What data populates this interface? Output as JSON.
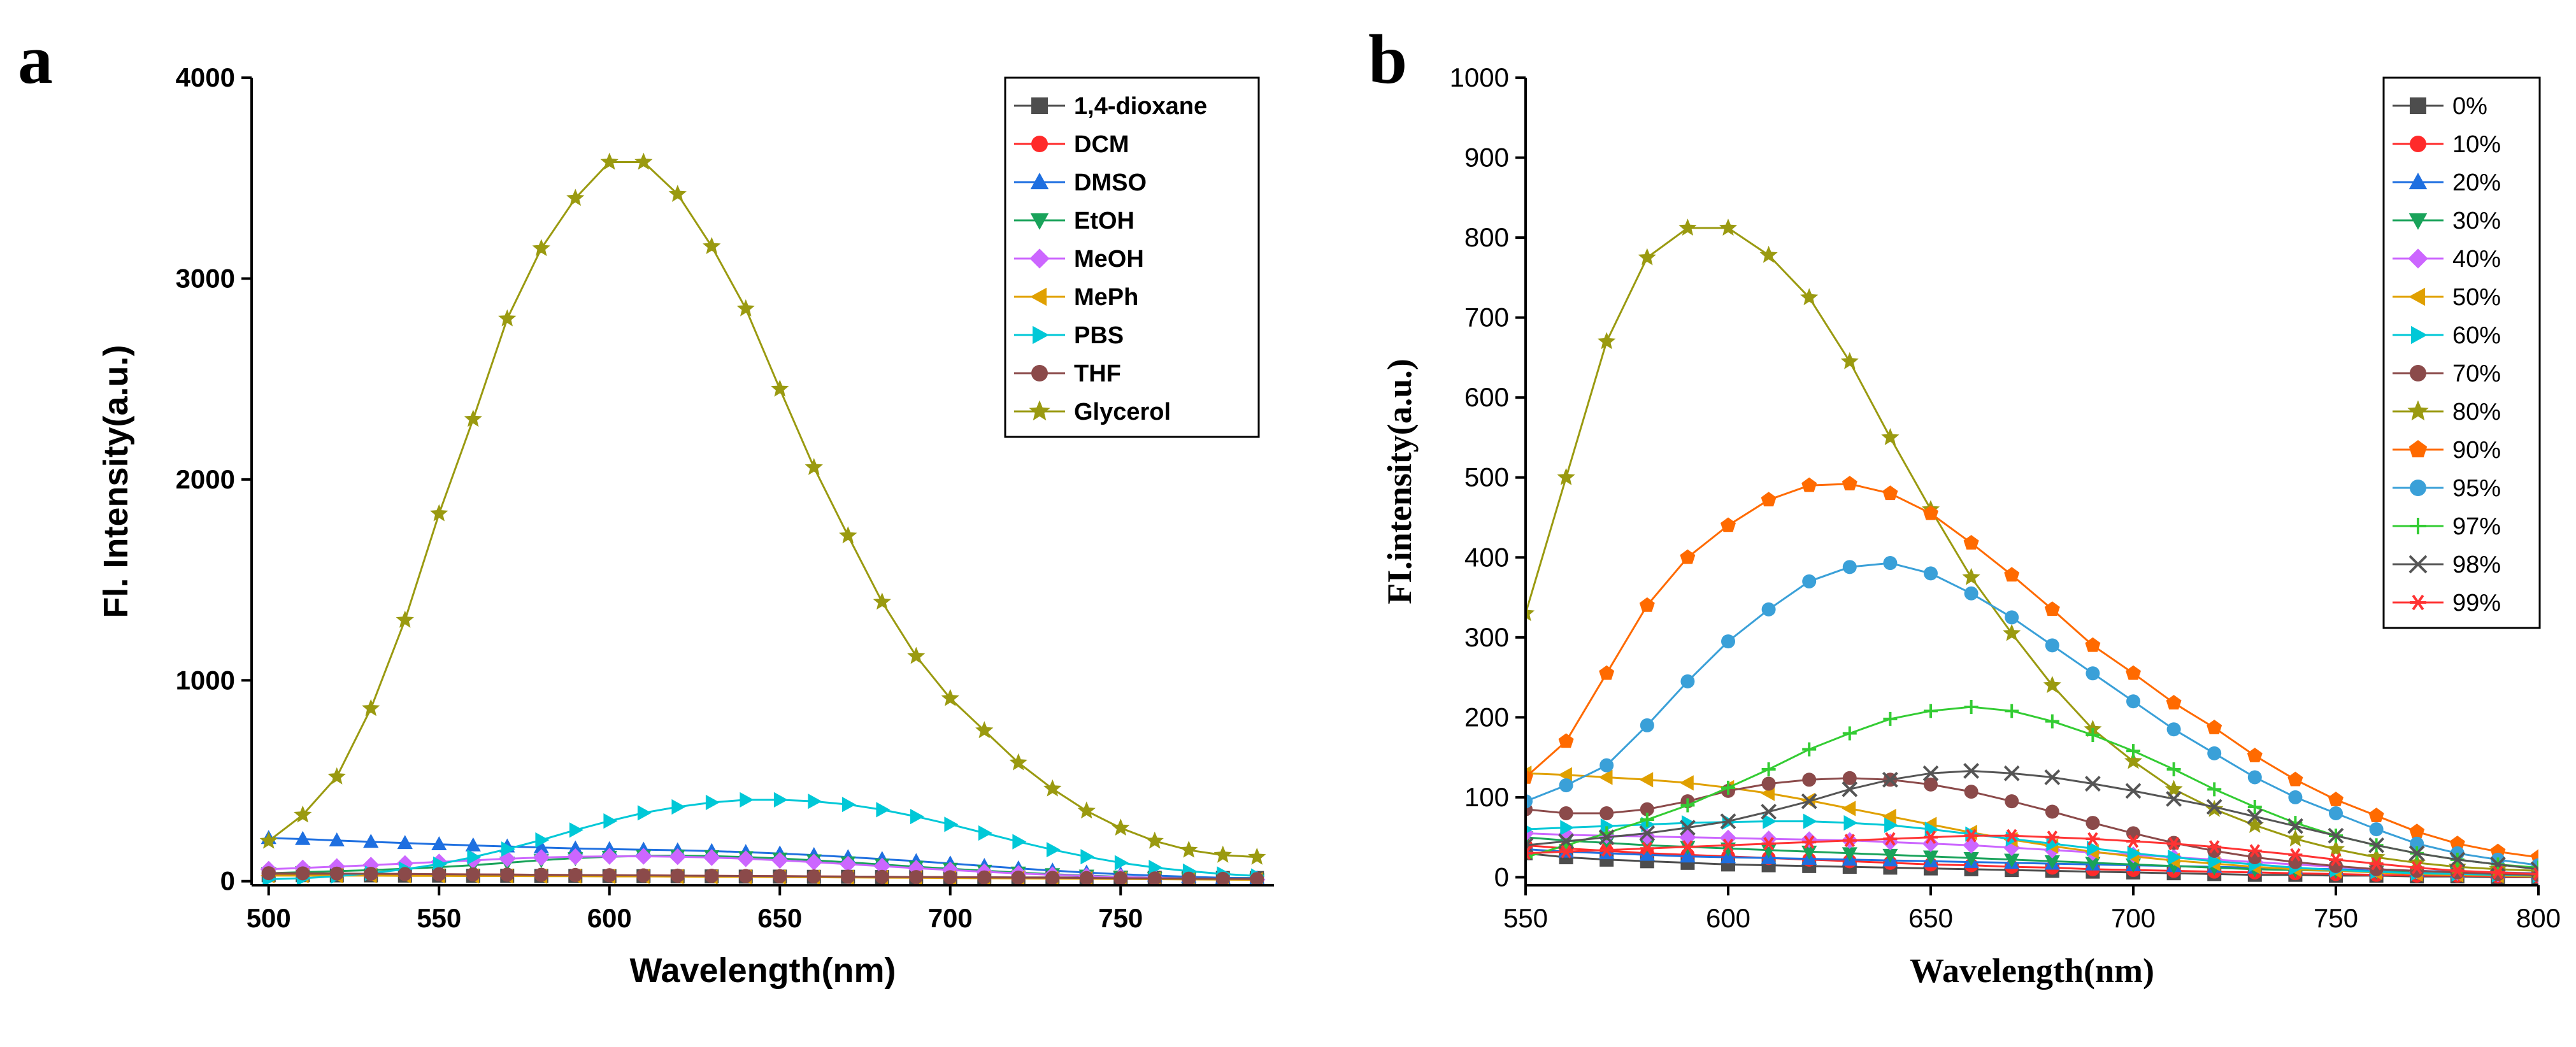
{
  "chart_data": [
    {
      "panel": "a",
      "type": "line",
      "xlabel": "Wavelength(nm)",
      "ylabel": "Fl. Intensity(a.u.)",
      "xlim": [
        495,
        795
      ],
      "ylim": [
        -20,
        4000
      ],
      "xticks": [
        500,
        550,
        600,
        650,
        700,
        750
      ],
      "yticks": [
        0,
        1000,
        2000,
        3000,
        4000
      ],
      "x": [
        500,
        510,
        520,
        530,
        540,
        550,
        560,
        570,
        580,
        590,
        600,
        610,
        620,
        630,
        640,
        650,
        660,
        670,
        680,
        690,
        700,
        710,
        720,
        730,
        740,
        750,
        760,
        770,
        780,
        790
      ],
      "series": [
        {
          "name": "1,4-dioxane",
          "color": "#4d4d4d",
          "marker": "square",
          "values": [
            30,
            30,
            29,
            29,
            28,
            28,
            27,
            27,
            26,
            26,
            25,
            25,
            24,
            24,
            23,
            23,
            22,
            22,
            21,
            21,
            20,
            20,
            19,
            19,
            18,
            18,
            17,
            17,
            16,
            16
          ]
        },
        {
          "name": "DCM",
          "color": "#ff2a2a",
          "marker": "circle",
          "values": [
            40,
            39,
            38,
            37,
            36,
            35,
            34,
            33,
            32,
            31,
            30,
            29,
            28,
            27,
            26,
            25,
            24,
            23,
            22,
            21,
            20,
            19,
            18,
            17,
            16,
            15,
            14,
            13,
            12,
            11
          ]
        },
        {
          "name": "DMSO",
          "color": "#1e6fe0",
          "marker": "triangle-up",
          "values": [
            215,
            210,
            203,
            196,
            190,
            184,
            178,
            173,
            168,
            163,
            160,
            157,
            154,
            150,
            145,
            138,
            130,
            120,
            110,
            100,
            88,
            76,
            64,
            53,
            43,
            35,
            28,
            22,
            17,
            14
          ]
        },
        {
          "name": "EtOH",
          "color": "#19a35a",
          "marker": "triangle-down",
          "values": [
            40,
            45,
            50,
            55,
            62,
            70,
            80,
            92,
            105,
            115,
            122,
            126,
            127,
            125,
            120,
            113,
            104,
            94,
            83,
            72,
            62,
            52,
            43,
            35,
            28,
            22,
            17,
            13,
            10,
            8
          ]
        },
        {
          "name": "MeOH",
          "color": "#cc66ff",
          "marker": "diamond",
          "values": [
            60,
            66,
            73,
            80,
            88,
            96,
            104,
            112,
            118,
            122,
            124,
            124,
            122,
            118,
            112,
            104,
            95,
            85,
            75,
            65,
            56,
            47,
            39,
            32,
            26,
            21,
            17,
            13,
            10,
            8
          ]
        },
        {
          "name": "MePh",
          "color": "#e0a000",
          "marker": "triangle-left",
          "values": [
            28,
            28,
            28,
            28,
            27,
            27,
            26,
            26,
            25,
            25,
            24,
            24,
            23,
            22,
            22,
            21,
            20,
            19,
            18,
            17,
            16,
            15,
            14,
            13,
            12,
            11,
            10,
            9,
            8,
            7
          ]
        },
        {
          "name": "PBS",
          "color": "#00c8d7",
          "marker": "triangle-right",
          "values": [
            10,
            15,
            25,
            40,
            60,
            85,
            120,
            160,
            205,
            255,
            300,
            340,
            370,
            392,
            405,
            405,
            398,
            382,
            356,
            322,
            283,
            240,
            197,
            157,
            122,
            92,
            68,
            50,
            36,
            26
          ]
        },
        {
          "name": "THF",
          "color": "#8b4a4a",
          "marker": "circle",
          "values": [
            40,
            39,
            38,
            37,
            36,
            35,
            34,
            33,
            32,
            31,
            30,
            29,
            28,
            27,
            26,
            25,
            24,
            23,
            22,
            21,
            20,
            19,
            18,
            17,
            16,
            15,
            14,
            13,
            12,
            11
          ]
        },
        {
          "name": "Glycerol",
          "color": "#9a9a10",
          "marker": "star",
          "values": [
            200,
            330,
            520,
            860,
            1300,
            1830,
            2300,
            2800,
            3150,
            3400,
            3580,
            3580,
            3420,
            3160,
            2850,
            2450,
            2060,
            1720,
            1390,
            1120,
            910,
            750,
            590,
            460,
            350,
            265,
            200,
            155,
            130,
            120
          ]
        }
      ]
    },
    {
      "panel": "b",
      "type": "line",
      "xlabel": "Wavelength(nm)",
      "ylabel": "FI.intensity(a.u.)",
      "xlim": [
        550,
        800
      ],
      "ylim": [
        -10,
        1000
      ],
      "xticks": [
        550,
        600,
        650,
        700,
        750,
        800
      ],
      "yticks": [
        0,
        100,
        200,
        300,
        400,
        500,
        600,
        700,
        800,
        900,
        1000
      ],
      "x": [
        550,
        560,
        570,
        580,
        590,
        600,
        610,
        620,
        630,
        640,
        650,
        660,
        670,
        680,
        690,
        700,
        710,
        720,
        730,
        740,
        750,
        760,
        770,
        780,
        790,
        800
      ],
      "series": [
        {
          "name": "0%",
          "color": "#4d4d4d",
          "marker": "square",
          "values": [
            30,
            25,
            22,
            20,
            18,
            16,
            15,
            14,
            13,
            12,
            11,
            10,
            9,
            8,
            7,
            6,
            5,
            4,
            3,
            3,
            2,
            2,
            1,
            1,
            0,
            0
          ]
        },
        {
          "name": "10%",
          "color": "#ff2a2a",
          "marker": "circle",
          "values": [
            40,
            36,
            33,
            30,
            28,
            26,
            24,
            22,
            20,
            18,
            16,
            15,
            13,
            12,
            10,
            9,
            8,
            7,
            6,
            5,
            4,
            3,
            2,
            2,
            1,
            1
          ]
        },
        {
          "name": "20%",
          "color": "#1e6fe0",
          "marker": "triangle-up",
          "values": [
            35,
            32,
            30,
            28,
            26,
            25,
            24,
            23,
            22,
            21,
            20,
            19,
            18,
            17,
            16,
            15,
            14,
            13,
            12,
            11,
            10,
            9,
            8,
            7,
            6,
            5
          ]
        },
        {
          "name": "30%",
          "color": "#19a35a",
          "marker": "triangle-down",
          "values": [
            50,
            46,
            43,
            40,
            38,
            36,
            34,
            32,
            30,
            28,
            26,
            24,
            22,
            20,
            18,
            16,
            14,
            12,
            10,
            9,
            8,
            7,
            6,
            5,
            4,
            3
          ]
        },
        {
          "name": "40%",
          "color": "#cc66ff",
          "marker": "diamond",
          "values": [
            55,
            53,
            52,
            51,
            50,
            49,
            48,
            47,
            46,
            44,
            42,
            40,
            37,
            34,
            31,
            28,
            25,
            22,
            19,
            16,
            13,
            10,
            8,
            6,
            4,
            3
          ]
        },
        {
          "name": "50%",
          "color": "#e0a000",
          "marker": "triangle-left",
          "values": [
            130,
            128,
            125,
            122,
            118,
            112,
            105,
            96,
            86,
            76,
            66,
            56,
            47,
            39,
            32,
            26,
            21,
            17,
            13,
            10,
            8,
            6,
            4,
            3,
            2,
            1
          ]
        },
        {
          "name": "60%",
          "color": "#00c8d7",
          "marker": "triangle-right",
          "values": [
            60,
            62,
            64,
            66,
            68,
            69,
            70,
            70,
            68,
            65,
            60,
            54,
            48,
            42,
            36,
            30,
            25,
            20,
            16,
            12,
            9,
            7,
            5,
            4,
            3,
            2
          ]
        },
        {
          "name": "70%",
          "color": "#8b4a4a",
          "marker": "circle",
          "values": [
            85,
            80,
            80,
            85,
            95,
            108,
            117,
            122,
            124,
            122,
            116,
            107,
            95,
            82,
            68,
            55,
            43,
            33,
            25,
            19,
            14,
            10,
            8,
            6,
            4,
            3
          ]
        },
        {
          "name": "80%",
          "color": "#9a9a10",
          "marker": "star",
          "values": [
            330,
            500,
            670,
            775,
            812,
            812,
            778,
            725,
            645,
            550,
            460,
            375,
            305,
            240,
            185,
            145,
            110,
            85,
            65,
            48,
            35,
            25,
            18,
            13,
            10,
            8
          ]
        },
        {
          "name": "90%",
          "color": "#ff6a00",
          "marker": "pentagon",
          "values": [
            125,
            170,
            255,
            340,
            400,
            440,
            472,
            490,
            492,
            480,
            455,
            418,
            378,
            335,
            290,
            255,
            218,
            187,
            152,
            122,
            97,
            77,
            57,
            42,
            32,
            25
          ]
        },
        {
          "name": "95%",
          "color": "#3aa0d8",
          "marker": "circle",
          "values": [
            95,
            115,
            140,
            190,
            245,
            295,
            335,
            370,
            388,
            393,
            380,
            355,
            325,
            290,
            255,
            220,
            185,
            155,
            125,
            100,
            80,
            60,
            42,
            30,
            22,
            15
          ]
        },
        {
          "name": "97%",
          "color": "#33cc33",
          "marker": "plus",
          "values": [
            25,
            40,
            55,
            72,
            90,
            112,
            135,
            160,
            180,
            198,
            208,
            213,
            208,
            195,
            178,
            158,
            135,
            110,
            88,
            68,
            52,
            40,
            30,
            22,
            16,
            12
          ]
        },
        {
          "name": "98%",
          "color": "#555555",
          "marker": "x",
          "values": [
            40,
            45,
            50,
            55,
            62,
            70,
            82,
            95,
            110,
            122,
            130,
            133,
            130,
            125,
            117,
            108,
            98,
            88,
            76,
            64,
            52,
            40,
            30,
            22,
            16,
            10
          ]
        },
        {
          "name": "99%",
          "color": "#ff3333",
          "marker": "asterisk",
          "values": [
            30,
            32,
            34,
            36,
            38,
            40,
            42,
            44,
            46,
            48,
            50,
            52,
            52,
            50,
            48,
            45,
            42,
            38,
            33,
            28,
            22,
            17,
            12,
            8,
            6,
            4
          ]
        }
      ]
    }
  ],
  "panels": [
    {
      "letter": "a"
    },
    {
      "letter": "b"
    }
  ]
}
